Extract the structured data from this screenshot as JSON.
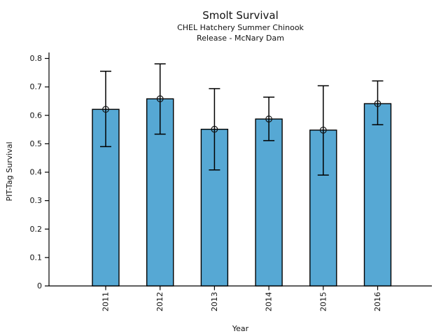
{
  "chart_data": {
    "type": "bar",
    "title": "Smolt Survival",
    "subtitle1": "CHEL Hatchery Summer Chinook",
    "subtitle2": "Release - McNary Dam",
    "xlabel": "Year",
    "ylabel": "PIT-Tag Survival",
    "categories": [
      "2011",
      "2012",
      "2013",
      "2014",
      "2015",
      "2016"
    ],
    "values": [
      0.621,
      0.658,
      0.551,
      0.587,
      0.548,
      0.641
    ],
    "error_low": [
      0.49,
      0.534,
      0.408,
      0.511,
      0.39,
      0.567
    ],
    "error_high": [
      0.755,
      0.781,
      0.694,
      0.664,
      0.704,
      0.721
    ],
    "ylim": [
      0,
      0.8
    ],
    "yticks": [
      0,
      0.1,
      0.2,
      0.3,
      0.4,
      0.5,
      0.6,
      0.7,
      0.8
    ],
    "ytick_labels": [
      "0",
      "0.1",
      "0.2",
      "0.3",
      "0.4",
      "0.5",
      "0.6",
      "0.7",
      "0.8"
    ],
    "x_tick_rotation": 90,
    "bar_color": "#56A8D4",
    "bar_edge_color": "#000000",
    "error_color": "#000000",
    "marker": "open-circle",
    "grid": false,
    "legend": false
  }
}
